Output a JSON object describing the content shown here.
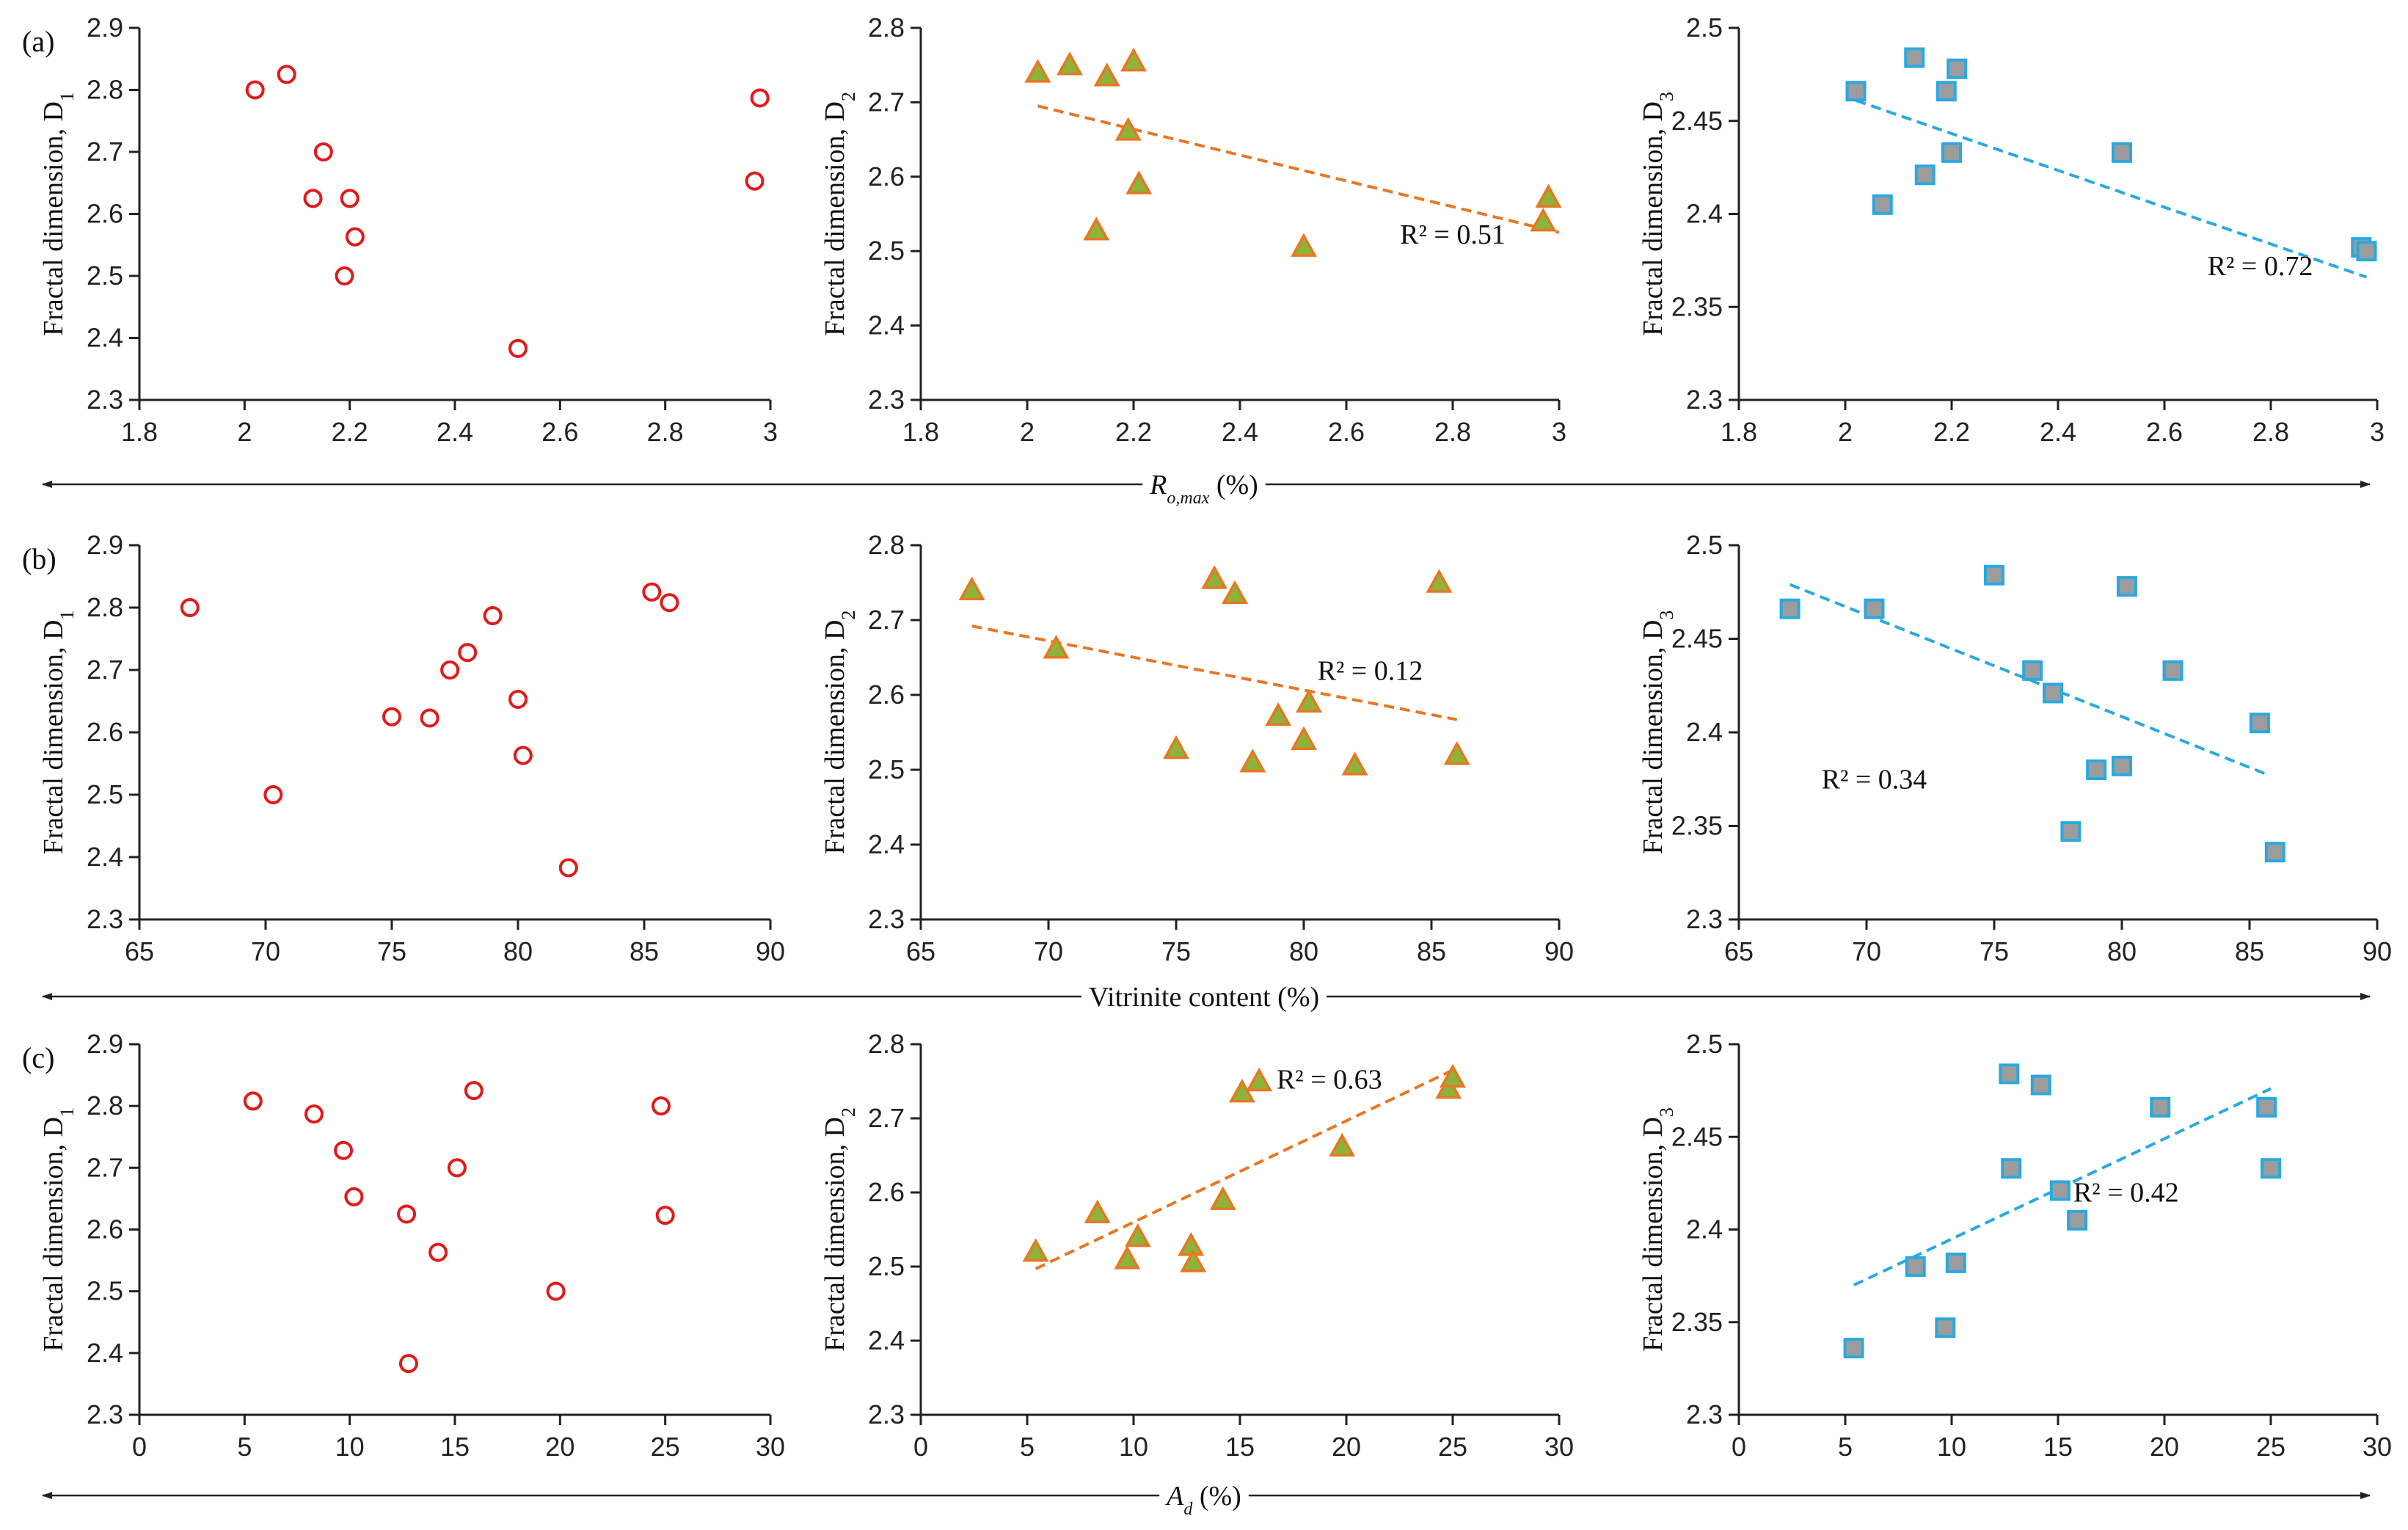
{
  "chart_data": [
    {
      "type": "scatter",
      "row": 0,
      "col": 0,
      "panel_label": "(a)",
      "xlim": [
        1.8,
        3.0
      ],
      "xticks": [
        1.8,
        2.0,
        2.2,
        2.4,
        2.6,
        2.8,
        3.0
      ],
      "xtick_labels": [
        "1.8",
        "2",
        "2.2",
        "2.4",
        "2.6",
        "2.8",
        "3"
      ],
      "ylim": [
        2.3,
        2.9
      ],
      "yticks": [
        2.3,
        2.4,
        2.5,
        2.6,
        2.7,
        2.8,
        2.9
      ],
      "ytick_labels": [
        "2.3",
        "2.4",
        "2.5",
        "2.6",
        "2.7",
        "2.8",
        "2.9"
      ],
      "ylabel": "Fractal dimension, D",
      "ylabel_sub": "1",
      "marker": "circle",
      "x": [
        2.02,
        2.08,
        2.13,
        2.15,
        2.19,
        2.2,
        2.21,
        2.52,
        2.97,
        2.98
      ],
      "y": [
        2.8,
        2.825,
        2.625,
        2.7,
        2.5,
        2.625,
        2.563,
        2.383,
        2.653,
        2.787
      ],
      "trend": null
    },
    {
      "type": "scatter",
      "row": 0,
      "col": 1,
      "xlim": [
        1.8,
        3.0
      ],
      "xticks": [
        1.8,
        2.0,
        2.2,
        2.4,
        2.6,
        2.8,
        3.0
      ],
      "xtick_labels": [
        "1.8",
        "2",
        "2.2",
        "2.4",
        "2.6",
        "2.8",
        "3"
      ],
      "ylim": [
        2.3,
        2.8
      ],
      "yticks": [
        2.3,
        2.4,
        2.5,
        2.6,
        2.7,
        2.8
      ],
      "ytick_labels": [
        "2.3",
        "2.4",
        "2.5",
        "2.6",
        "2.7",
        "2.8"
      ],
      "ylabel": "Fractal dimension, D",
      "ylabel_sub": "2",
      "marker": "triangle",
      "x": [
        2.02,
        2.08,
        2.13,
        2.15,
        2.19,
        2.2,
        2.21,
        2.52,
        2.97,
        2.98
      ],
      "y": [
        2.74,
        2.75,
        2.528,
        2.735,
        2.662,
        2.755,
        2.59,
        2.506,
        2.54,
        2.572
      ],
      "trend": {
        "x": [
          2.02,
          3.0
        ],
        "y": [
          2.695,
          2.525
        ],
        "r2": "R² = 0.51",
        "label_x": 2.8,
        "label_y": 2.51
      }
    },
    {
      "type": "scatter",
      "row": 0,
      "col": 2,
      "xlim": [
        1.8,
        3.0
      ],
      "xticks": [
        1.8,
        2.0,
        2.2,
        2.4,
        2.6,
        2.8,
        3.0
      ],
      "xtick_labels": [
        "1.8",
        "2",
        "2.2",
        "2.4",
        "2.6",
        "2.8",
        "3"
      ],
      "ylim": [
        2.3,
        2.5
      ],
      "yticks": [
        2.3,
        2.35,
        2.4,
        2.45,
        2.5
      ],
      "ytick_labels": [
        "2.3",
        "2.35",
        "2.4",
        "2.45",
        "2.5"
      ],
      "ylabel": "Fractal dimension, D",
      "ylabel_sub": "3",
      "marker": "square",
      "x": [
        2.02,
        2.07,
        2.13,
        2.15,
        2.19,
        2.2,
        2.21,
        2.52,
        2.97,
        2.98
      ],
      "y": [
        2.466,
        2.405,
        2.484,
        2.421,
        2.466,
        2.433,
        2.478,
        2.433,
        2.382,
        2.38
      ],
      "trend": {
        "x": [
          2.02,
          2.98
        ],
        "y": [
          2.461,
          2.366
        ],
        "r2": "R² = 0.72",
        "label_x": 2.78,
        "label_y": 2.367
      }
    },
    {
      "type": "scatter",
      "row": 1,
      "col": 0,
      "panel_label": "(b)",
      "xlim": [
        65,
        90
      ],
      "xticks": [
        65,
        70,
        75,
        80,
        85,
        90
      ],
      "xtick_labels": [
        "65",
        "70",
        "75",
        "80",
        "85",
        "90"
      ],
      "ylim": [
        2.3,
        2.9
      ],
      "yticks": [
        2.3,
        2.4,
        2.5,
        2.6,
        2.7,
        2.8,
        2.9
      ],
      "ytick_labels": [
        "2.3",
        "2.4",
        "2.5",
        "2.6",
        "2.7",
        "2.8",
        "2.9"
      ],
      "ylabel": "Fractal dimension, D",
      "ylabel_sub": "1",
      "marker": "circle",
      "x": [
        67,
        70.3,
        75,
        76.5,
        77.3,
        78,
        79,
        80,
        80.2,
        82,
        85.3,
        86
      ],
      "y": [
        2.8,
        2.5,
        2.625,
        2.623,
        2.7,
        2.728,
        2.787,
        2.653,
        2.563,
        2.383,
        2.825,
        2.808
      ],
      "trend": null
    },
    {
      "type": "scatter",
      "row": 1,
      "col": 1,
      "xlim": [
        65,
        90
      ],
      "xticks": [
        65,
        70,
        75,
        80,
        85,
        90
      ],
      "xtick_labels": [
        "65",
        "70",
        "75",
        "80",
        "85",
        "90"
      ],
      "ylim": [
        2.3,
        2.8
      ],
      "yticks": [
        2.3,
        2.4,
        2.5,
        2.6,
        2.7,
        2.8
      ],
      "ytick_labels": [
        "2.3",
        "2.4",
        "2.5",
        "2.6",
        "2.7",
        "2.8"
      ],
      "ylabel": "Fractal dimension, D",
      "ylabel_sub": "2",
      "marker": "triangle",
      "x": [
        67,
        70.3,
        75,
        76.5,
        77.3,
        78,
        79,
        80,
        80.2,
        82,
        85.3,
        86
      ],
      "y": [
        2.74,
        2.662,
        2.528,
        2.755,
        2.735,
        2.51,
        2.572,
        2.54,
        2.59,
        2.506,
        2.75,
        2.52
      ],
      "trend": {
        "x": [
          67,
          86
        ],
        "y": [
          2.692,
          2.567
        ],
        "r2": "R² = 0.12",
        "label_x": 82.6,
        "label_y": 2.62
      }
    },
    {
      "type": "scatter",
      "row": 1,
      "col": 2,
      "xlim": [
        65,
        90
      ],
      "xticks": [
        65,
        70,
        75,
        80,
        85,
        90
      ],
      "xtick_labels": [
        "65",
        "70",
        "75",
        "80",
        "85",
        "90"
      ],
      "ylim": [
        2.3,
        2.5
      ],
      "yticks": [
        2.3,
        2.35,
        2.4,
        2.45,
        2.5
      ],
      "ytick_labels": [
        "2.3",
        "2.35",
        "2.4",
        "2.45",
        "2.5"
      ],
      "ylabel": "Fractal dimension, D",
      "ylabel_sub": "3",
      "marker": "square",
      "x": [
        67,
        70.3,
        75,
        76.5,
        77.3,
        78,
        79,
        80,
        80.2,
        82,
        85.4,
        86
      ],
      "y": [
        2.466,
        2.466,
        2.484,
        2.433,
        2.421,
        2.347,
        2.38,
        2.382,
        2.478,
        2.433,
        2.405,
        2.336
      ],
      "trend": {
        "x": [
          67,
          85.6
        ],
        "y": [
          2.479,
          2.378
        ],
        "r2": "R² = 0.34",
        "label_x": 70.3,
        "label_y": 2.37
      }
    },
    {
      "type": "scatter",
      "row": 2,
      "col": 0,
      "panel_label": "(c)",
      "xlim": [
        0,
        30
      ],
      "xticks": [
        0,
        5,
        10,
        15,
        20,
        25,
        30
      ],
      "xtick_labels": [
        "0",
        "5",
        "10",
        "15",
        "20",
        "25",
        "30"
      ],
      "ylim": [
        2.3,
        2.9
      ],
      "yticks": [
        2.3,
        2.4,
        2.5,
        2.6,
        2.7,
        2.8,
        2.9
      ],
      "ytick_labels": [
        "2.3",
        "2.4",
        "2.5",
        "2.6",
        "2.7",
        "2.8",
        "2.9"
      ],
      "ylabel": "Fractal dimension, D",
      "ylabel_sub": "1",
      "marker": "circle",
      "x": [
        5.4,
        8.3,
        9.7,
        10.2,
        12.7,
        12.8,
        14.2,
        15.1,
        15.9,
        19.8,
        24.8,
        25
      ],
      "y": [
        2.808,
        2.787,
        2.728,
        2.653,
        2.625,
        2.383,
        2.563,
        2.7,
        2.825,
        2.5,
        2.8,
        2.623
      ],
      "trend": null
    },
    {
      "type": "scatter",
      "row": 2,
      "col": 1,
      "xlim": [
        0,
        30
      ],
      "xticks": [
        0,
        5,
        10,
        15,
        20,
        25,
        30
      ],
      "xtick_labels": [
        "0",
        "5",
        "10",
        "15",
        "20",
        "25",
        "30"
      ],
      "ylim": [
        2.3,
        2.8
      ],
      "yticks": [
        2.3,
        2.4,
        2.5,
        2.6,
        2.7,
        2.8
      ],
      "ytick_labels": [
        "2.3",
        "2.4",
        "2.5",
        "2.6",
        "2.7",
        "2.8"
      ],
      "ylabel": "Fractal dimension, D",
      "ylabel_sub": "2",
      "marker": "triangle",
      "x": [
        5.4,
        8.3,
        9.7,
        10.2,
        12.7,
        12.8,
        14.2,
        15.1,
        15.9,
        19.8,
        24.8,
        25
      ],
      "y": [
        2.52,
        2.572,
        2.51,
        2.54,
        2.528,
        2.506,
        2.59,
        2.735,
        2.75,
        2.662,
        2.74,
        2.755
      ],
      "trend": {
        "x": [
          5.4,
          25
        ],
        "y": [
          2.497,
          2.765
        ],
        "r2": "R² = 0.63",
        "label_x": 19.2,
        "label_y": 2.74
      }
    },
    {
      "type": "scatter",
      "row": 2,
      "col": 2,
      "xlim": [
        0,
        30
      ],
      "xticks": [
        0,
        5,
        10,
        15,
        20,
        25,
        30
      ],
      "xtick_labels": [
        "0",
        "5",
        "10",
        "15",
        "20",
        "25",
        "30"
      ],
      "ylim": [
        2.3,
        2.5
      ],
      "yticks": [
        2.3,
        2.35,
        2.4,
        2.45,
        2.5
      ],
      "ytick_labels": [
        "2.3",
        "2.35",
        "2.4",
        "2.45",
        "2.5"
      ],
      "ylabel": "Fractal dimension, D",
      "ylabel_sub": "3",
      "marker": "square",
      "x": [
        5.4,
        8.3,
        9.7,
        10.2,
        12.7,
        12.8,
        14.2,
        15.1,
        15.9,
        19.8,
        24.8,
        25
      ],
      "y": [
        2.336,
        2.38,
        2.347,
        2.382,
        2.484,
        2.433,
        2.478,
        2.421,
        2.405,
        2.466,
        2.466,
        2.433
      ],
      "trend": {
        "x": [
          5.4,
          25
        ],
        "y": [
          2.37,
          2.476
        ],
        "r2": "R² = 0.42",
        "label_x": 18.2,
        "label_y": 2.415
      }
    }
  ],
  "row_axes": [
    {
      "label": "R",
      "label_sub": "o,max",
      "label_suffix": " (%)"
    },
    {
      "label": "Vitrinite content (%)",
      "label_sub": "",
      "label_suffix": ""
    },
    {
      "label": "A",
      "label_sub": "d",
      "label_suffix": " (%)"
    }
  ],
  "colors": {
    "circle_edge": "#e01b1b",
    "triangle_fill": "#8db33a",
    "triangle_edge": "#e87722",
    "square_fill": "#9c9c9c",
    "square_edge": "#29a9e1",
    "trend_d2": "#e87722",
    "trend_d3": "#29a9e1",
    "axis": "#222222"
  }
}
